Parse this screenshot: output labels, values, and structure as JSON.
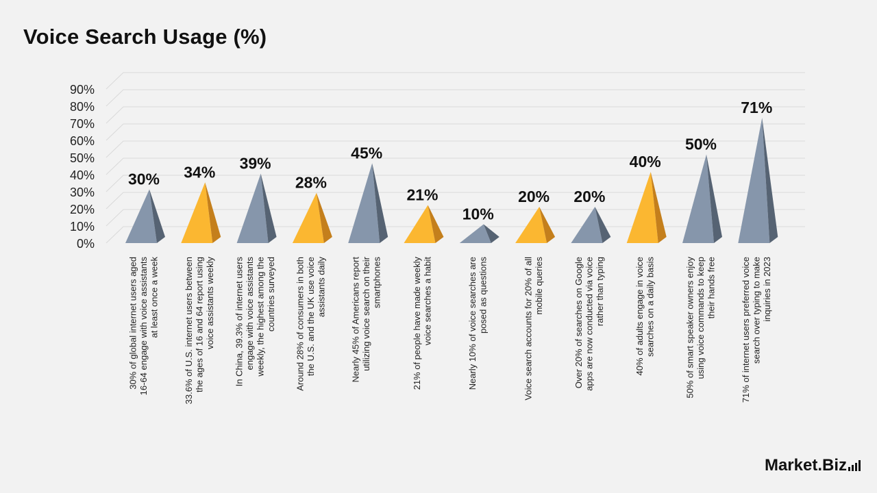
{
  "title": "Voice Search Usage (%)",
  "brand": {
    "name": "Market.Biz"
  },
  "colors": {
    "slate": "#8696ab",
    "slate_dark": "#566373",
    "gold": "#fbb731",
    "gold_dark": "#c47f1c",
    "grid": "#d9d9d9",
    "text": "#111111"
  },
  "chart_data": {
    "type": "bar",
    "bar_shape": "pyramid",
    "title": "Voice Search Usage (%)",
    "xlabel": "",
    "ylabel": "",
    "ylim": [
      0,
      90
    ],
    "yticks": [
      0,
      10,
      20,
      30,
      40,
      50,
      60,
      70,
      80,
      90
    ],
    "ytick_labels": [
      "0%",
      "10%",
      "20%",
      "30%",
      "40%",
      "50%",
      "60%",
      "70%",
      "80%",
      "90%"
    ],
    "grid": true,
    "legend": "none",
    "categories": [
      "30% of global internet users aged 16-64 engage with voice assistants at least once a week",
      "33.6% of U.S. internet users between the ages of 16 and 64 report using voice assistants weekly",
      "In China, 39.3% of internet users engage with voice assistants weekly, the highest among the countries surveyed",
      "Around 28% of consumers in both the U.S. and the UK use voice assistants daily",
      "Nearly 45% of Americans report utilizing voice search on their smartphones",
      "21% of people have made weekly voice searches a habit",
      "Nearly 10% of voice searches are posed as questions",
      "Voice search accounts for 20% of all mobile queries",
      "Over 20% of searches on Google apps are now conducted via voice rather than typing",
      "40% of adults engage in voice searches on a daily basis",
      "50% of smart speaker owners enjoy using voice commands to keep their hands free",
      "71% of internet users preferred voice search over typing to make inquiries in 2023"
    ],
    "category_lines": [
      [
        "30% of global internet users aged",
        "16-64 engage with voice assistants",
        "at least once a week"
      ],
      [
        "33.6% of U.S. internet users between",
        "the ages of 16 and 64 report using",
        "voice assistants weekly"
      ],
      [
        "In China, 39.3% of internet users",
        "engage with voice assistants",
        "weekly, the highest among the",
        "countries surveyed"
      ],
      [
        "Around 28% of consumers in both",
        "the U.S. and the UK use voice",
        "assistants daily"
      ],
      [
        "Nearly 45% of Americans report",
        "utilizing voice search on their",
        "smartphones"
      ],
      [
        "21% of people have made weekly",
        "voice searches a habit"
      ],
      [
        "Nearly 10% of voice searches are",
        "posed as questions"
      ],
      [
        "Voice search accounts for 20% of all",
        "mobile queries"
      ],
      [
        "Over 20% of searches on Google",
        "apps are now conducted via voice",
        "rather than typing"
      ],
      [
        "40% of adults engage in voice",
        "searches on a daily basis"
      ],
      [
        "50% of smart speaker owners enjoy",
        "using voice commands to keep",
        "their hands free"
      ],
      [
        "71% of internet users preferred voice",
        "search over typing to make",
        "inquiries in 2023"
      ]
    ],
    "values": [
      30,
      34,
      39,
      28,
      45,
      21,
      10,
      20,
      20,
      40,
      50,
      71
    ],
    "data_labels": [
      "30%",
      "34%",
      "39%",
      "28%",
      "45%",
      "21%",
      "10%",
      "20%",
      "20%",
      "40%",
      "50%",
      "71%"
    ],
    "bar_colors": [
      "slate",
      "gold",
      "slate",
      "gold",
      "slate",
      "gold",
      "slate",
      "gold",
      "slate",
      "gold",
      "slate",
      "slate"
    ]
  }
}
